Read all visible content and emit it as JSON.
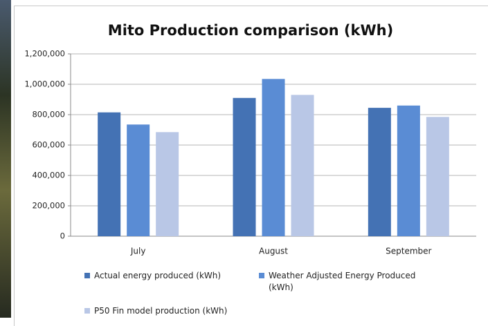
{
  "chart_data": {
    "type": "bar",
    "title": "Mito Production comparison (kWh)",
    "categories": [
      "July",
      "August",
      "September"
    ],
    "series": [
      {
        "name": "Actual energy produced (kWh)",
        "color": "#4472b4",
        "values": [
          815000,
          910000,
          845000
        ]
      },
      {
        "name": "Weather Adjusted Energy Produced (kWh)",
        "color": "#5a8cd4",
        "values": [
          735000,
          1035000,
          860000
        ]
      },
      {
        "name": "P50 Fin model production (kWh)",
        "color": "#b9c7e6",
        "values": [
          685000,
          930000,
          785000
        ]
      }
    ],
    "ylim": [
      0,
      1200000
    ],
    "yticks": [
      0,
      {
        "value": 200000,
        "label": "200,000"
      },
      {
        "value": 400000,
        "label": "400,000"
      },
      {
        "value": 600000,
        "label": "600,000"
      },
      {
        "value": 800000,
        "label": "800,000"
      },
      {
        "value": 1000000,
        "label": "1,000,000"
      },
      {
        "value": 1200000,
        "label": "1,200,000"
      }
    ],
    "grid": true,
    "legend": "bottom"
  }
}
